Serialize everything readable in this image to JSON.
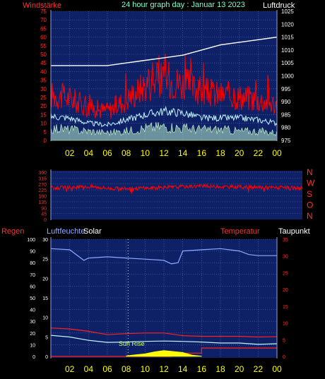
{
  "header": {
    "wind_label": "Windstärke",
    "title": "24 hour graph day : Januar 13 2023",
    "pressure_label": "Luftdruck"
  },
  "panel3_labels": {
    "rain": "Regen",
    "humidity": "Luftfeuchte",
    "solar": "Solar",
    "temperature": "Temperatur",
    "dewpoint": "Taupunkt",
    "sunrise": "Sun Rise"
  },
  "colors": {
    "panel_bg": "#0f2166",
    "grid": "#5a6fb8",
    "wind_red": "#ff0000",
    "cyan": "#bff5ff",
    "pressure_white": "#ffffff",
    "humidity_blue": "#8fa8ff",
    "temp_red": "#ff2020",
    "solar_yellow": "#ffff00",
    "axis_red": "#ff3030",
    "title_cyan": "#7fffd4"
  },
  "chart_data": [
    {
      "type": "line",
      "title": "24 hour graph day : Januar 13 2023",
      "x_ticks": [
        "02",
        "04",
        "06",
        "08",
        "10",
        "12",
        "14",
        "16",
        "18",
        "20",
        "22",
        "00"
      ],
      "left_axis": {
        "label": "Windstärke",
        "ticks": [
          "0",
          "5",
          "10",
          "15",
          "20",
          "25",
          "30",
          "35",
          "40",
          "45",
          "50",
          "55",
          "60",
          "65",
          "70",
          "75"
        ],
        "range": [
          0,
          75
        ]
      },
      "right_axis": {
        "label": "Luftdruck",
        "ticks": [
          "975",
          "980",
          "985",
          "990",
          "995",
          "1000",
          "1005",
          "1010",
          "1015",
          "1020",
          "1025"
        ],
        "range": [
          975,
          1025
        ]
      },
      "series": [
        {
          "name": "Luftdruck",
          "axis": "right",
          "x": [
            0,
            2,
            4,
            6,
            8,
            10,
            12,
            14,
            16,
            18,
            20,
            22,
            24
          ],
          "values": [
            1004,
            1004,
            1004,
            1004,
            1005,
            1006,
            1007,
            1008,
            1010,
            1012,
            1013,
            1014,
            1015
          ]
        },
        {
          "axis": "left",
          "x": [
            0,
            2,
            4,
            6,
            8,
            10,
            12,
            14,
            16,
            18,
            20,
            22,
            24
          ],
          "values": [
            14,
            13,
            10,
            9,
            12,
            15,
            17,
            16,
            13,
            13,
            13,
            12,
            10
          ]
        },
        {
          "axis": "left",
          "x": [
            0,
            2,
            4,
            6,
            8,
            10,
            12,
            14,
            16,
            18,
            20,
            22,
            24
          ],
          "values": [
            28,
            26,
            20,
            18,
            25,
            34,
            38,
            35,
            30,
            28,
            27,
            25,
            22
          ]
        },
        {
          "axis": "left",
          "x": [
            0,
            2,
            4,
            6,
            8,
            10,
            12,
            14,
            16,
            18,
            20,
            22,
            24
          ],
          "values": [
            8,
            7,
            6,
            5,
            6,
            8,
            9,
            8,
            7,
            7,
            6,
            6,
            5
          ]
        }
      ]
    },
    {
      "type": "line",
      "y_ticks": [
        "360",
        "315",
        "270",
        "225",
        "180",
        "135",
        "90",
        "45",
        "0"
      ],
      "range": [
        0,
        360
      ],
      "compass": [
        "N",
        "W",
        "S",
        "O",
        "N"
      ],
      "series": [
        {
          "x": [
            0,
            2,
            4,
            6,
            8,
            10,
            12,
            14,
            16,
            18,
            20,
            22,
            24
          ],
          "values": [
            240,
            245,
            250,
            235,
            238,
            242,
            248,
            255,
            250,
            248,
            245,
            242,
            240
          ]
        }
      ]
    },
    {
      "type": "line",
      "x_ticks": [
        "02",
        "04",
        "06",
        "08",
        "10",
        "12",
        "14",
        "16",
        "18",
        "20",
        "22",
        "00"
      ],
      "left_axis": {
        "label": "Luftfeuchte",
        "ticks": [
          "0",
          "10",
          "20",
          "30",
          "40",
          "50",
          "60",
          "70",
          "80",
          "90",
          "100"
        ],
        "range": [
          0,
          100
        ]
      },
      "rain_axis": {
        "label": "Regen",
        "ticks": [
          "0",
          "5",
          "10",
          "15",
          "20",
          "25",
          "30"
        ],
        "range": [
          0,
          30
        ]
      },
      "right_axis": {
        "label": "Taupunkt",
        "ticks": [
          "0",
          "5",
          "10",
          "15",
          "20",
          "25",
          "30",
          "35"
        ],
        "range": [
          0,
          35
        ]
      },
      "series": [
        {
          "name": "Luftfeuchte",
          "x": [
            0,
            2,
            3.5,
            4,
            6,
            8,
            10,
            12,
            12.8,
            13.5,
            14,
            16,
            18,
            20,
            21,
            22,
            24
          ],
          "values": [
            92,
            91,
            82,
            84,
            85,
            84,
            83,
            82,
            79,
            80,
            90,
            91,
            92,
            90,
            87,
            86,
            86
          ]
        },
        {
          "name": "Temperatur",
          "x": [
            0,
            2,
            4,
            6,
            8,
            10,
            12,
            14,
            16,
            18,
            20,
            22,
            24
          ],
          "values": [
            8.5,
            8.2,
            7.5,
            6.5,
            6.8,
            7.0,
            7.0,
            6.2,
            6.0,
            6.0,
            6.0,
            5.8,
            5.9
          ]
        },
        {
          "name": "Taupunkt",
          "x": [
            0,
            2,
            4,
            6,
            8,
            10,
            12,
            14,
            16,
            18,
            20,
            22,
            24
          ],
          "values": [
            6.3,
            5.8,
            4.8,
            4.2,
            4.3,
            4.5,
            4.6,
            4.5,
            4.3,
            4.0,
            4.0,
            3.6,
            3.8
          ]
        },
        {
          "name": "Regen",
          "x": [
            0,
            12,
            12.8,
            12.8,
            16,
            16,
            24
          ],
          "values": [
            0,
            0,
            0,
            1.0,
            1.0,
            2.5,
            2.5
          ]
        },
        {
          "name": "Solar",
          "x": [
            8,
            9,
            10,
            11,
            12,
            13,
            14,
            14.5,
            15,
            16
          ],
          "values": [
            0.2,
            0.5,
            0.8,
            1.4,
            1.8,
            1.5,
            1.2,
            0.8,
            0.4,
            0.1
          ]
        }
      ]
    }
  ]
}
